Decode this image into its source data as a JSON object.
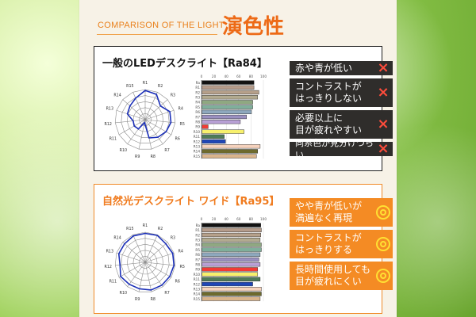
{
  "header": {
    "subtitle": "COMPARISON OF THE LIGHT",
    "title": "演色性"
  },
  "cards": [
    {
      "title": "一般のLEDデスクライト【Ra84】",
      "items": [
        {
          "text": "赤や青が低い",
          "mark": "x"
        },
        {
          "text": "コントラストが\nはっきりしない",
          "mark": "x"
        },
        {
          "text": "必要以上に\n目が疲れやすい",
          "mark": "x"
        },
        {
          "text": "同系色が見分けづらい",
          "mark": "x"
        }
      ]
    },
    {
      "title": "自然光デスクライト ワイド【Ra95】",
      "items": [
        {
          "text": "やや青が低いが\n満遍なく再現",
          "mark": "o"
        },
        {
          "text": "コントラストが\nはっきりする",
          "mark": "o"
        },
        {
          "text": "長時間使用しても\n目が疲れにくい",
          "mark": "o"
        }
      ]
    }
  ],
  "chart_data": [
    {
      "type": "radar",
      "categories": [
        "R1",
        "R2",
        "R3",
        "R4",
        "R5",
        "R6",
        "R7",
        "R8",
        "R9",
        "R10",
        "R11",
        "R12",
        "R13",
        "R14",
        "R15"
      ],
      "values": [
        97,
        92,
        68,
        86,
        86,
        80,
        72,
        62,
        10,
        38,
        42,
        40,
        62,
        68,
        78
      ],
      "ylim": [
        0,
        100
      ]
    },
    {
      "type": "bar",
      "categories": [
        "Ra",
        "R1",
        "R2",
        "R3",
        "R4",
        "R5",
        "R6",
        "R7",
        "R8",
        "R9",
        "R10",
        "R11",
        "R12",
        "R13",
        "R14",
        "R15"
      ],
      "values": [
        84,
        84,
        92,
        90,
        82,
        82,
        80,
        72,
        62,
        10,
        68,
        36,
        38,
        94,
        90,
        88
      ],
      "ylim": [
        0,
        100
      ]
    },
    {
      "type": "radar",
      "categories": [
        "R1",
        "R2",
        "R3",
        "R4",
        "R5",
        "R6",
        "R7",
        "R8",
        "R9",
        "R10",
        "R11",
        "R12",
        "R13",
        "R14",
        "R15"
      ],
      "values": [
        96,
        98,
        92,
        96,
        96,
        94,
        94,
        94,
        90,
        90,
        94,
        84,
        92,
        92,
        96
      ],
      "ylim": [
        0,
        100
      ]
    },
    {
      "type": "bar",
      "categories": [
        "Ra",
        "R1",
        "R2",
        "R3",
        "R4",
        "R5",
        "R6",
        "R7",
        "R8",
        "R9",
        "R10",
        "R11",
        "R12",
        "R13",
        "R14",
        "R15"
      ],
      "values": [
        95,
        96,
        95,
        94,
        96,
        96,
        94,
        92,
        94,
        90,
        90,
        94,
        82,
        96,
        96,
        94
      ],
      "ylim": [
        0,
        100
      ]
    }
  ],
  "colors": {
    "panel_bg": "#f7f2e7",
    "accent": "#f48b24",
    "dark": "#2f2d2b",
    "x_mark": "#ff4c3b",
    "o_mark": "#ffe033",
    "radar_line": "#1b2fb8",
    "bar_colors": [
      "#121212",
      "#b69c8b",
      "#b6a08a",
      "#b2aa8f",
      "#8fa881",
      "#7faf9b",
      "#8ea8bd",
      "#9a90c0",
      "#b8a0d5",
      "#f23b35",
      "#f7f06c",
      "#4e7b58",
      "#1f46b7",
      "#f5d2bd",
      "#6d6a2d",
      "#d9b48b"
    ]
  }
}
